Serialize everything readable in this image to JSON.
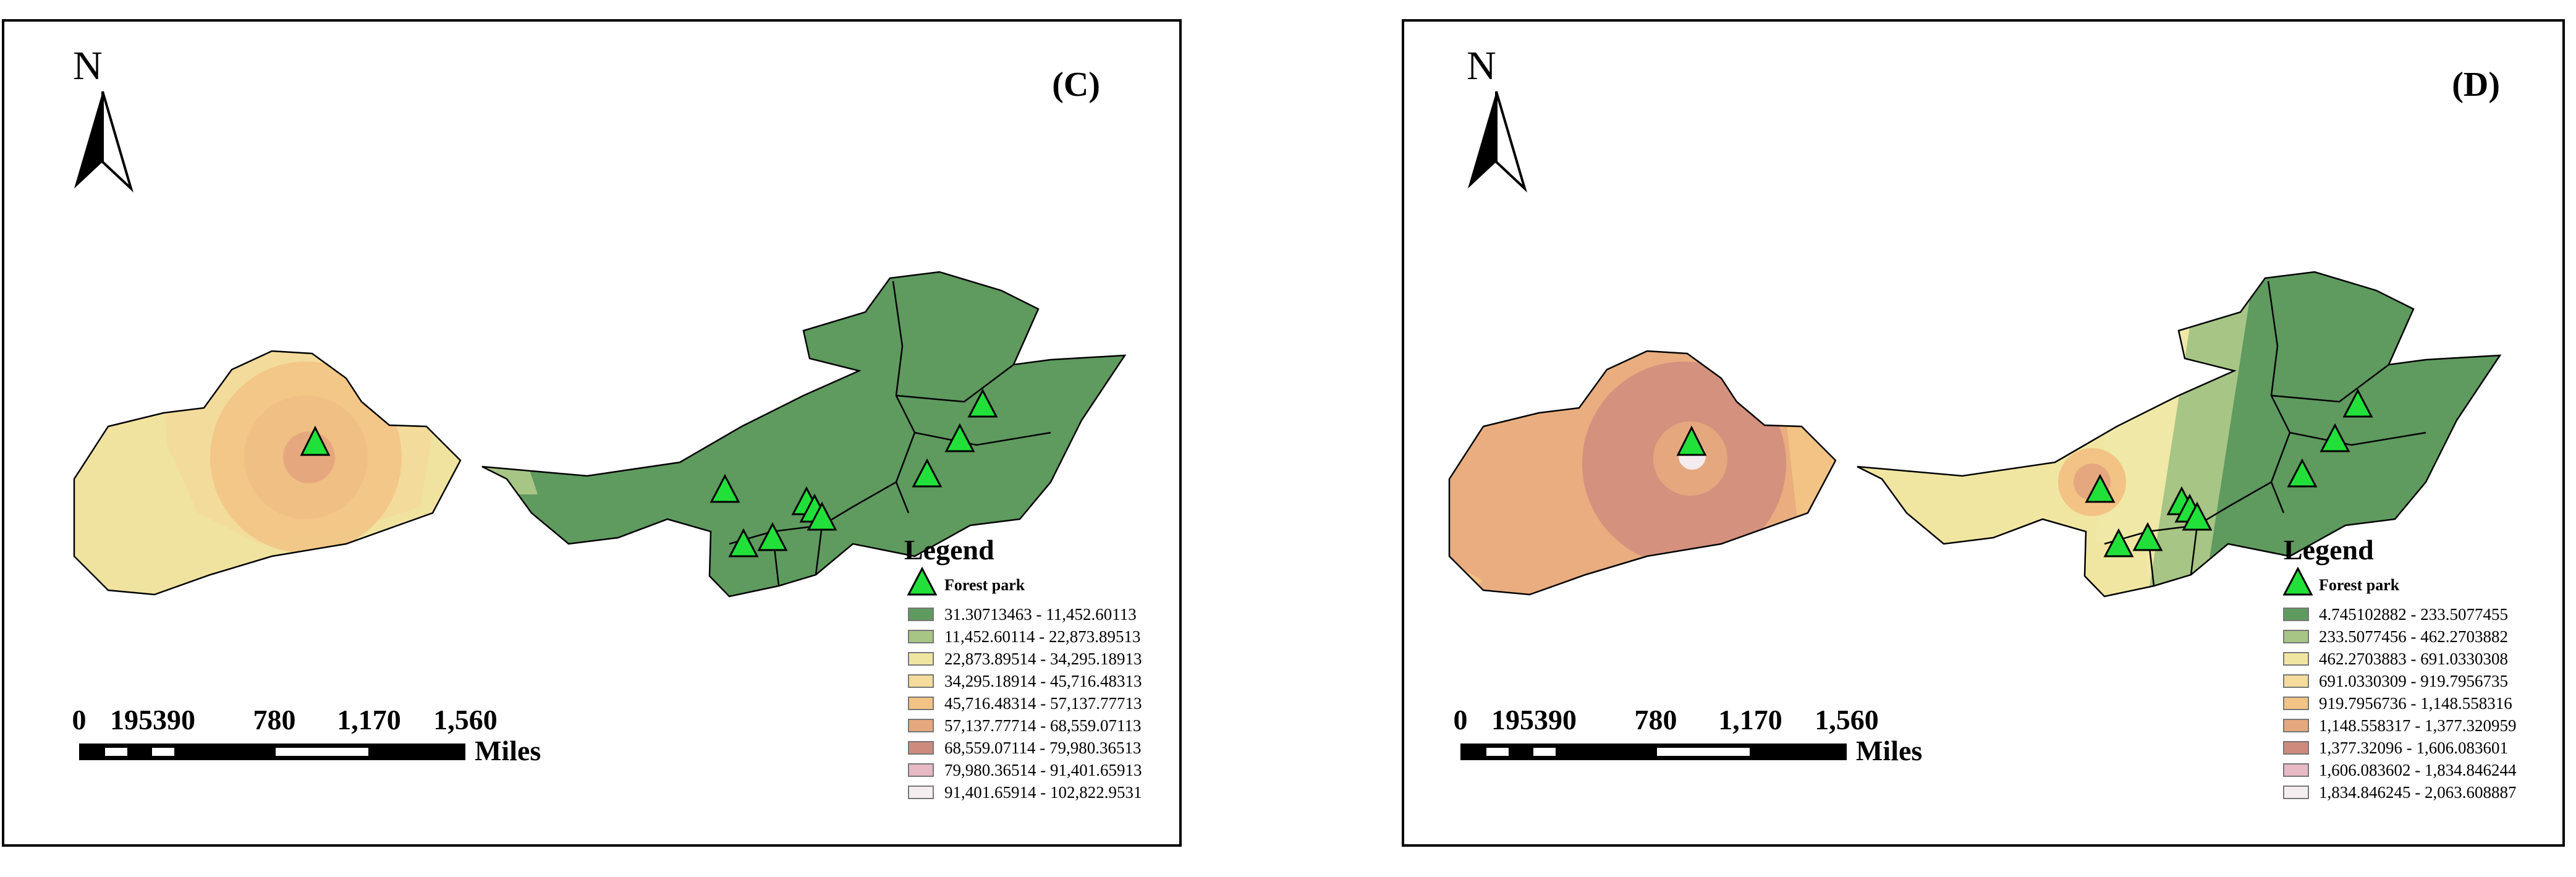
{
  "panels": [
    {
      "id": "C",
      "panel_label": "(C)",
      "north": "N",
      "legend_title": "Legend",
      "marker_label": "Forest park",
      "scale_ticks": [
        "0",
        "195390",
        "780",
        "1,170",
        "1,560"
      ],
      "scale_unit": "Miles",
      "classes": [
        {
          "label": "31.30713463 - 11,452.60113",
          "color": "#5f9a5f"
        },
        {
          "label": "11,452.60114 - 22,873.89513",
          "color": "#a7c585"
        },
        {
          "label": "22,873.89514 - 34,295.18913",
          "color": "#f0e6a2"
        },
        {
          "label": "34,295.18914 - 45,716.48313",
          "color": "#f5dc9c"
        },
        {
          "label": "45,716.48314 - 57,137.77713",
          "color": "#f2c384"
        },
        {
          "label": "57,137.77714 - 68,559.07113",
          "color": "#e5a87e"
        },
        {
          "label": "68,559.07114 - 79,980.36513",
          "color": "#cf8a7e"
        },
        {
          "label": "79,980.36514 - 91,401.65913",
          "color": "#e6b9c5"
        },
        {
          "label": "91,401.65914 - 102,822.9531",
          "color": "#f5eef0"
        }
      ]
    },
    {
      "id": "D",
      "panel_label": "(D)",
      "north": "N",
      "legend_title": "Legend",
      "marker_label": "Forest park",
      "scale_ticks": [
        "0",
        "195390",
        "780",
        "1,170",
        "1,560"
      ],
      "scale_unit": "Miles",
      "classes": [
        {
          "label": "4.745102882 - 233.5077455",
          "color": "#5f9a5f"
        },
        {
          "label": "233.5077456 - 462.2703882",
          "color": "#a7c585"
        },
        {
          "label": "462.2703883 - 691.0330308",
          "color": "#f0e6a2"
        },
        {
          "label": "691.0330309 - 919.7956735",
          "color": "#f5dc9c"
        },
        {
          "label": "919.7956736 - 1,148.558316",
          "color": "#f2c384"
        },
        {
          "label": "1,148.558317 - 1,377.320959",
          "color": "#e5a87e"
        },
        {
          "label": "1,377.32096 - 1,606.083601",
          "color": "#cf8a7e"
        },
        {
          "label": "1,606.083602 - 1,834.846244",
          "color": "#e6b9c5"
        },
        {
          "label": "1,834.846245 - 2,063.608887",
          "color": "#f5eef0"
        }
      ]
    }
  ],
  "colors": {
    "forest_green": "#5f9a5f",
    "marker": "#22e03a",
    "border": "#000000"
  }
}
